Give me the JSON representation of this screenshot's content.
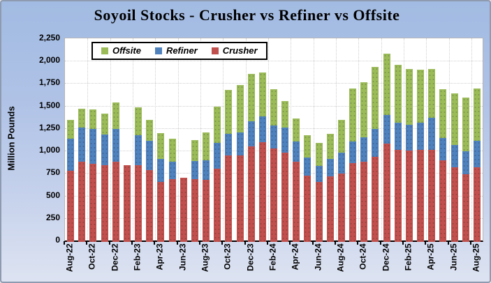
{
  "chart_data": {
    "type": "bar",
    "stacked": true,
    "title": "Soyoil Stocks - Crusher vs Refiner vs Offsite",
    "xlabel": "",
    "ylabel": "Million Pounds",
    "ylim": [
      0,
      2250
    ],
    "ytick_step": 250,
    "ytick_labels": [
      "0",
      "250",
      "500",
      "750",
      "1,000",
      "1,250",
      "1,500",
      "1,750",
      "2,000",
      "2,250"
    ],
    "grid": true,
    "legend_position": "top-left-inside",
    "legend_labels": [
      "Offsite",
      "Refiner",
      "Crusher"
    ],
    "xtick_every": 2,
    "categories": [
      "Aug-22",
      "Sep-22",
      "Oct-22",
      "Nov-22",
      "Dec-22",
      "Jan-23",
      "Feb-23",
      "Mar-23",
      "Apr-23",
      "May-23",
      "Jun-23",
      "Jul-23",
      "Aug-23",
      "Sep-23",
      "Oct-23",
      "Nov-23",
      "Dec-23",
      "Jan-24",
      "Feb-24",
      "Mar-24",
      "Apr-24",
      "May-24",
      "Jun-24",
      "Jul-24",
      "Aug-24",
      "Sep-24",
      "Oct-24",
      "Nov-24",
      "Dec-24",
      "Jan-25",
      "Feb-25",
      "Mar-25",
      "Apr-25",
      "May-25",
      "Jun-25",
      "Jul-25",
      "Aug-25"
    ],
    "series": [
      {
        "name": "Crusher",
        "color": "#c0504d",
        "values": [
          775,
          880,
          850,
          835,
          880,
          840,
          840,
          785,
          650,
          685,
          700,
          685,
          675,
          800,
          945,
          950,
          1045,
          1095,
          1025,
          975,
          875,
          725,
          655,
          715,
          745,
          865,
          880,
          935,
          1080,
          1005,
          1000,
          1010,
          1010,
          895,
          815,
          740,
          815
        ]
      },
      {
        "name": "Refiner",
        "color": "#4f81bd",
        "values": [
          360,
          375,
          395,
          345,
          365,
          0,
          335,
          325,
          255,
          195,
          0,
          200,
          215,
          285,
          240,
          255,
          280,
          285,
          255,
          285,
          225,
          195,
          175,
          190,
          235,
          240,
          265,
          310,
          315,
          305,
          285,
          300,
          355,
          245,
          250,
          255,
          295
        ]
      },
      {
        "name": "Offsite",
        "color": "#9bbb59",
        "values": [
          205,
          210,
          210,
          230,
          290,
          0,
          310,
          235,
          290,
          250,
          0,
          230,
          310,
          405,
          490,
          525,
          530,
          490,
          405,
          290,
          260,
          255,
          255,
          280,
          365,
          585,
          615,
          685,
          685,
          645,
          625,
          590,
          545,
          540,
          570,
          595,
          585
        ]
      }
    ]
  }
}
